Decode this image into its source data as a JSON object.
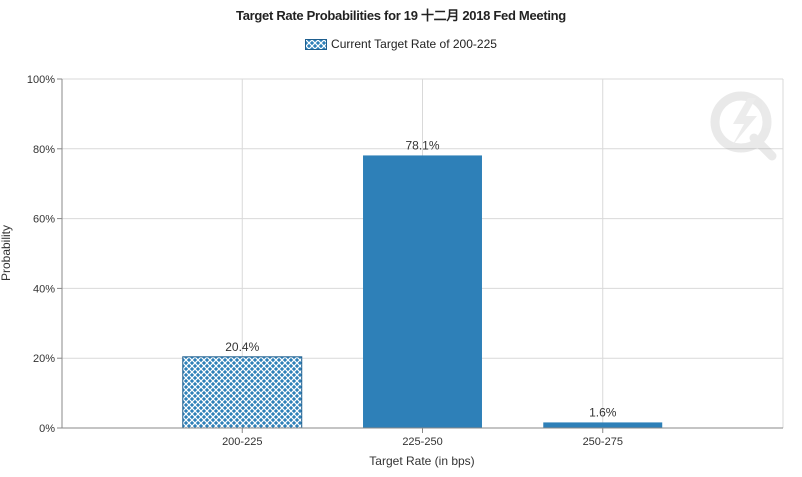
{
  "chart_data": {
    "type": "bar",
    "title": "Target Rate Probabilities for 19 十二月 2018  Fed Meeting",
    "legend": [
      "Current Target Rate of 200-225"
    ],
    "legend_position": "top-center",
    "categories": [
      "200-225",
      "225-250",
      "250-275"
    ],
    "values": [
      20.4,
      78.1,
      1.6
    ],
    "data_labels": [
      "20.4%",
      "78.1%",
      "1.6%"
    ],
    "current_category": "200-225",
    "xlabel": "Target Rate (in bps)",
    "ylabel": "Probability",
    "ylim": [
      0,
      100
    ],
    "y_ticks": [
      0,
      20,
      40,
      60,
      80,
      100
    ],
    "y_tick_labels": [
      "0%",
      "20%",
      "40%",
      "60%",
      "80%",
      "100%"
    ],
    "grid": true,
    "colors": {
      "bar": "#2e80b8",
      "hatch": "#2e80b8",
      "grid": "#d9d9d9",
      "axis": "#888888"
    }
  }
}
